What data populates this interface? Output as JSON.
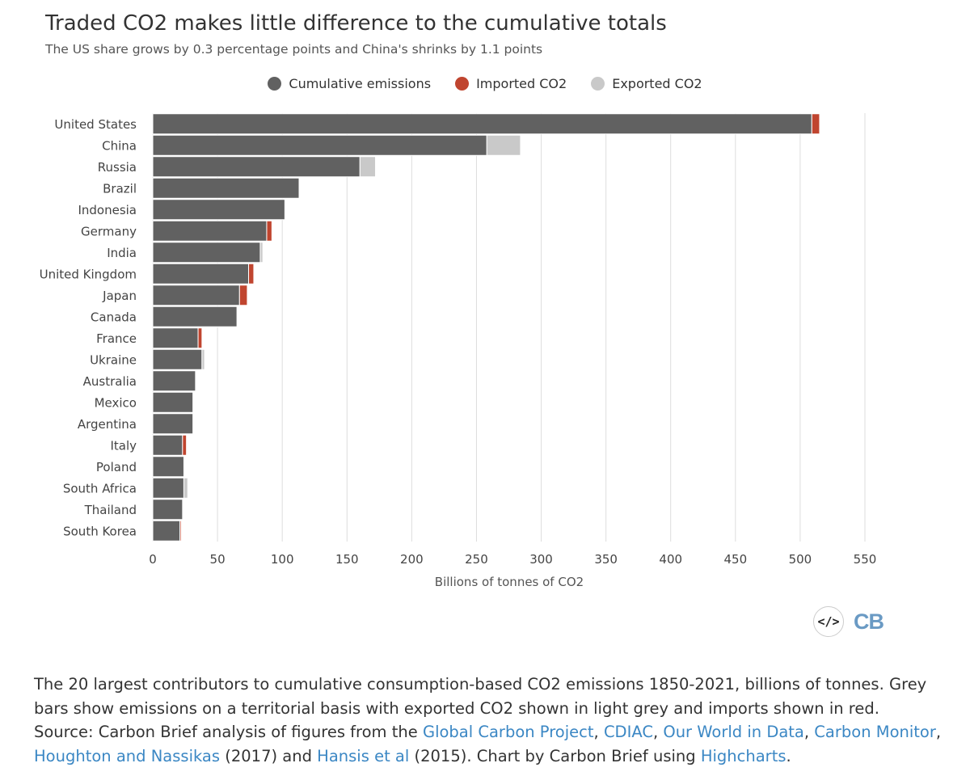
{
  "title": "Traded CO2 makes little difference to the cumulative totals",
  "subtitle": "The US share grows by 0.3 percentage points and China's shrinks by 1.1 points",
  "legend": [
    {
      "label": "Cumulative emissions",
      "color": "#616161"
    },
    {
      "label": "Imported CO2",
      "color": "#c0452f"
    },
    {
      "label": "Exported CO2",
      "color": "#c9c9c9"
    }
  ],
  "chart_data": {
    "type": "bar",
    "orientation": "horizontal",
    "stacked": true,
    "xlabel": "Billions of tonnes of CO2",
    "xlim": [
      0,
      550
    ],
    "xticks": [
      0,
      50,
      100,
      150,
      200,
      250,
      300,
      350,
      400,
      450,
      500,
      550
    ],
    "grid": true,
    "legend_position": "top-center",
    "categories": [
      "United States",
      "China",
      "Russia",
      "Brazil",
      "Indonesia",
      "Germany",
      "India",
      "United Kingdom",
      "Japan",
      "Canada",
      "France",
      "Ukraine",
      "Australia",
      "Mexico",
      "Argentina",
      "Italy",
      "Poland",
      "South Africa",
      "Thailand",
      "South Korea"
    ],
    "series": [
      {
        "name": "Cumulative emissions",
        "color": "#616161",
        "values": [
          509,
          258,
          160,
          113,
          102,
          88,
          83,
          74,
          67,
          65,
          35,
          38,
          33,
          31,
          31,
          23,
          24,
          24,
          23,
          21
        ]
      },
      {
        "name": "Imported CO2",
        "color": "#c0452f",
        "values": [
          6,
          0,
          0,
          0,
          0,
          4,
          0,
          4,
          6,
          0,
          3,
          0,
          0,
          0,
          0,
          3,
          0,
          0,
          0,
          1
        ]
      },
      {
        "name": "Exported CO2",
        "color": "#c9c9c9",
        "values": [
          0,
          26,
          12,
          0,
          0,
          0,
          2,
          0,
          0,
          0,
          0,
          2,
          0,
          0,
          0,
          0,
          0,
          3,
          0,
          0
        ]
      }
    ]
  },
  "tools": {
    "embed_label": "</>",
    "logo": "CB"
  },
  "caption": {
    "part1": "The 20 largest contributors to cumulative consumption-based CO2 emissions 1850-2021, billions of tonnes. Grey bars show emissions on a territorial basis with exported CO2 shown in light grey and imports shown in red. Source: Carbon Brief analysis of figures from the ",
    "link1": "Global Carbon Project",
    "sep1": ", ",
    "link2": "CDIAC",
    "sep2": ", ",
    "link3": "Our World in Data",
    "sep3": ", ",
    "link4": "Carbon Monitor",
    "sep4": ", ",
    "link5": "Houghton and Nassikas",
    "part2": " (2017) and ",
    "link6": "Hansis et al",
    "part3": " (2015). Chart by Carbon Brief using ",
    "link7": "Highcharts",
    "part4": "."
  }
}
